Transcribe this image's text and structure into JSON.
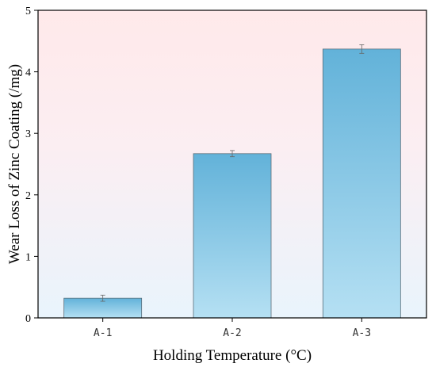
{
  "chart_data": {
    "type": "bar",
    "categories": [
      "A-1",
      "A-2",
      "A-3"
    ],
    "values": [
      0.32,
      2.67,
      4.37
    ],
    "errors": [
      0.05,
      0.05,
      0.07
    ],
    "xlabel": "Holding Temperature (°C)",
    "ylabel": "Wear Loss of Zinc Coating (/mg)",
    "ylim": [
      0,
      5
    ],
    "yticks": [
      0,
      1,
      2,
      3,
      4,
      5
    ],
    "grid": false,
    "colors": {
      "bar_top": "#62b2d9",
      "bar_bottom": "#b5e0f3",
      "bar_stroke": "#5a6e7a",
      "background_top": "#ffe9ea",
      "background_bottom": "#e9f4fc"
    }
  }
}
